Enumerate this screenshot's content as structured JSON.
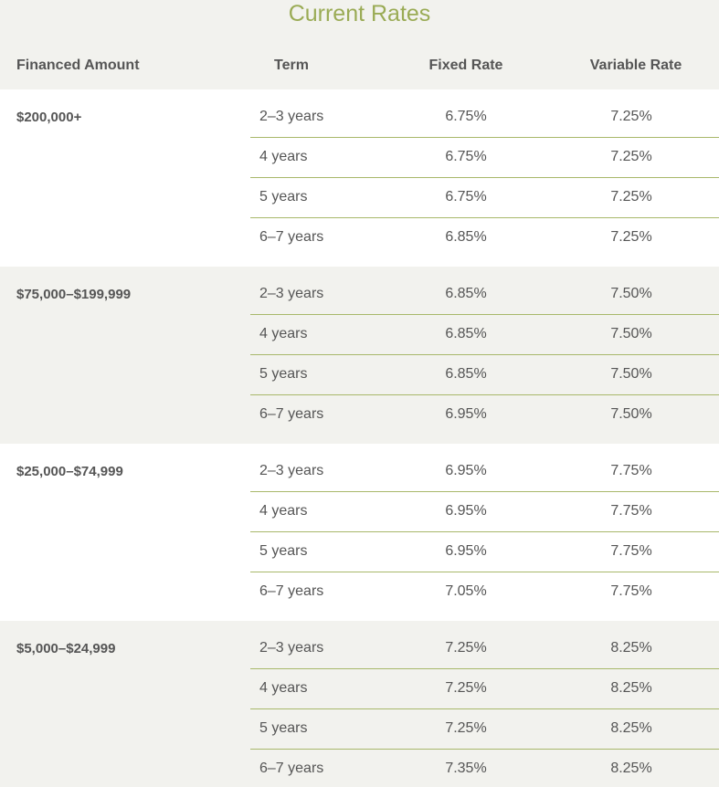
{
  "title": "Current Rates",
  "headers": {
    "amount": "Financed Amount",
    "term": "Term",
    "fixed": "Fixed Rate",
    "variable": "Variable Rate"
  },
  "groups": [
    {
      "amount": "$200,000+",
      "rows": [
        {
          "term": "2–3 years",
          "fixed": "6.75%",
          "variable": "7.25%"
        },
        {
          "term": "4 years",
          "fixed": "6.75%",
          "variable": "7.25%"
        },
        {
          "term": "5 years",
          "fixed": "6.75%",
          "variable": "7.25%"
        },
        {
          "term": "6–7 years",
          "fixed": "6.85%",
          "variable": "7.25%"
        }
      ]
    },
    {
      "amount": "$75,000–$199,999",
      "rows": [
        {
          "term": "2–3 years",
          "fixed": "6.85%",
          "variable": "7.50%"
        },
        {
          "term": "4 years",
          "fixed": "6.85%",
          "variable": "7.50%"
        },
        {
          "term": "5 years",
          "fixed": "6.85%",
          "variable": "7.50%"
        },
        {
          "term": "6–7 years",
          "fixed": "6.95%",
          "variable": "7.50%"
        }
      ]
    },
    {
      "amount": "$25,000–$74,999",
      "rows": [
        {
          "term": "2–3 years",
          "fixed": "6.95%",
          "variable": "7.75%"
        },
        {
          "term": "4 years",
          "fixed": "6.95%",
          "variable": "7.75%"
        },
        {
          "term": "5 years",
          "fixed": "6.95%",
          "variable": "7.75%"
        },
        {
          "term": "6–7 years",
          "fixed": "7.05%",
          "variable": "7.75%"
        }
      ]
    },
    {
      "amount": "$5,000–$24,999",
      "rows": [
        {
          "term": "2–3 years",
          "fixed": "7.25%",
          "variable": "8.25%"
        },
        {
          "term": "4 years",
          "fixed": "7.25%",
          "variable": "8.25%"
        },
        {
          "term": "5 years",
          "fixed": "7.25%",
          "variable": "8.25%"
        },
        {
          "term": "6–7 years",
          "fixed": "7.35%",
          "variable": "8.25%"
        }
      ]
    }
  ]
}
